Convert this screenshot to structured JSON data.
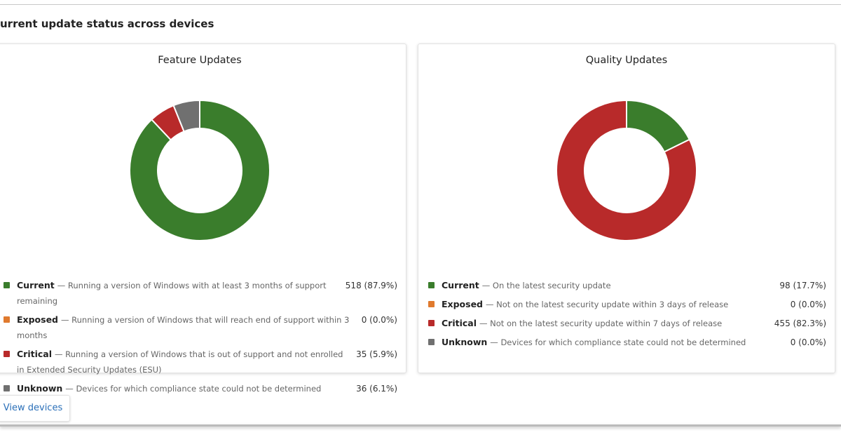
{
  "header": {
    "title": "urrent update status across devices"
  },
  "chart_data": [
    {
      "type": "pie",
      "donut": true,
      "title": "Feature Updates",
      "categories": [
        "Current",
        "Exposed",
        "Critical",
        "Unknown"
      ],
      "descriptions": [
        "— Running a version of Windows with at least 3 months of support remaining",
        "— Running a version of Windows that will reach end of support within 3 months",
        "— Running a version of Windows that is out of support and not enrolled in Extended Security Updates (ESU)",
        "— Devices for which compliance state could not be determined"
      ],
      "values": [
        518,
        0,
        35,
        36
      ],
      "value_labels": [
        "518 (87.9%)",
        "0 (0.0%)",
        "35 (5.9%)",
        "36 (6.1%)"
      ],
      "colors": [
        "#3a7d2c",
        "#e07a2e",
        "#b82a2a",
        "#707070"
      ]
    },
    {
      "type": "pie",
      "donut": true,
      "title": "Quality Updates",
      "categories": [
        "Current",
        "Exposed",
        "Critical",
        "Unknown"
      ],
      "descriptions": [
        "— On the latest security update",
        "— Not on the latest security update within 3 days of release",
        "— Not on the latest security update within 7 days of release",
        "— Devices for which compliance state could not be determined"
      ],
      "values": [
        98,
        0,
        455,
        0
      ],
      "value_labels": [
        "98 (17.7%)",
        "0 (0.0%)",
        "455 (82.3%)",
        "0 (0.0%)"
      ],
      "colors": [
        "#3a7d2c",
        "#e07a2e",
        "#b82a2a",
        "#707070"
      ]
    }
  ],
  "button": {
    "label": "View devices"
  }
}
